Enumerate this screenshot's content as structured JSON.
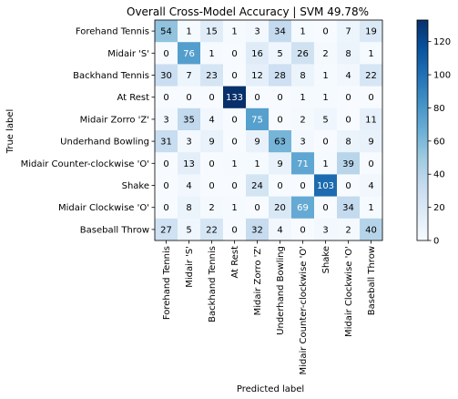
{
  "chart_data": {
    "type": "heatmap",
    "title": "Overall Cross-Model Accuracy | SVM 49.78%",
    "xlabel": "Predicted label",
    "ylabel": "True label",
    "row_labels": [
      "Forehand Tennis",
      "Midair 'S'",
      "Backhand Tennis",
      "At Rest",
      "Midair Zorro 'Z'",
      "Underhand Bowling",
      "Midair Counter-clockwise 'O'",
      "Shake",
      "Midair Clockwise 'O'",
      "Baseball Throw"
    ],
    "col_labels": [
      "Forehand Tennis",
      "Midair 'S'",
      "Backhand Tennis",
      "At Rest",
      "Midair Zorro 'Z'",
      "Underhand Bowling",
      "Midair Counter-clockwise 'O'",
      "Shake",
      "Midair Clockwise 'O'",
      "Baseball Throw"
    ],
    "matrix": [
      [
        54,
        1,
        15,
        1,
        3,
        34,
        1,
        0,
        7,
        19
      ],
      [
        0,
        76,
        1,
        0,
        16,
        5,
        26,
        2,
        8,
        1
      ],
      [
        30,
        7,
        23,
        0,
        12,
        28,
        8,
        1,
        4,
        22
      ],
      [
        0,
        0,
        0,
        133,
        0,
        0,
        1,
        1,
        0,
        0
      ],
      [
        3,
        35,
        4,
        0,
        75,
        0,
        2,
        5,
        0,
        11
      ],
      [
        31,
        3,
        9,
        0,
        9,
        63,
        3,
        0,
        8,
        9
      ],
      [
        0,
        13,
        0,
        1,
        1,
        9,
        71,
        1,
        39,
        0
      ],
      [
        0,
        4,
        0,
        0,
        24,
        0,
        0,
        103,
        0,
        4
      ],
      [
        0,
        8,
        2,
        1,
        0,
        20,
        69,
        0,
        34,
        1
      ],
      [
        27,
        5,
        22,
        0,
        32,
        4,
        0,
        3,
        2,
        40
      ]
    ],
    "colorbar": {
      "min": 0,
      "max": 133,
      "ticks": [
        "0",
        "20",
        "40",
        "60",
        "80",
        "100",
        "120"
      ],
      "colormap": "Blues"
    },
    "grid": false
  }
}
